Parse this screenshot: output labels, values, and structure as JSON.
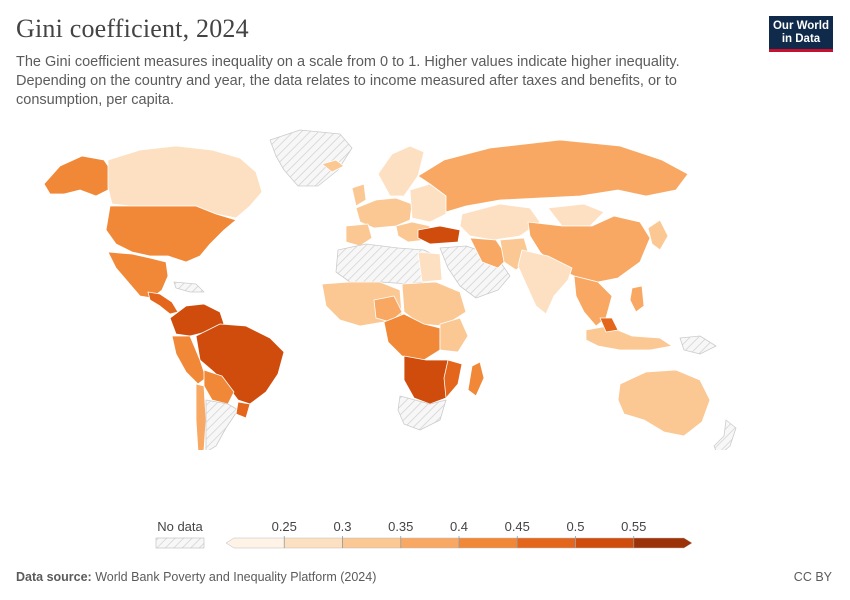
{
  "header": {
    "title": "Gini coefficient, 2024",
    "subtitle": "The Gini coefficient measures inequality on a scale from 0 to 1. Higher values indicate higher inequality. Depending on the country and year, the data relates to income measured after taxes and benefits, or to consumption, per capita.",
    "logo_line1": "Our World",
    "logo_line2": "in Data"
  },
  "legend": {
    "no_data_label": "No data",
    "ticks": [
      "0.25",
      "0.3",
      "0.35",
      "0.4",
      "0.45",
      "0.5",
      "0.55"
    ],
    "bin_colors": [
      "#fef3e6",
      "#fde0c1",
      "#fbc894",
      "#f8a862",
      "#f08838",
      "#e3661c",
      "#cf4c0c",
      "#9b3208"
    ],
    "no_data_color": "#e5e5e5"
  },
  "map_colors": {
    "ocean": "#ffffff",
    "border": "#ffffff",
    "no_data_hatch": "#d9d9d9"
  },
  "footer": {
    "source_label": "Data source:",
    "source_text": "World Bank Poverty and Inequality Platform (2024)",
    "license": "CC BY"
  }
}
